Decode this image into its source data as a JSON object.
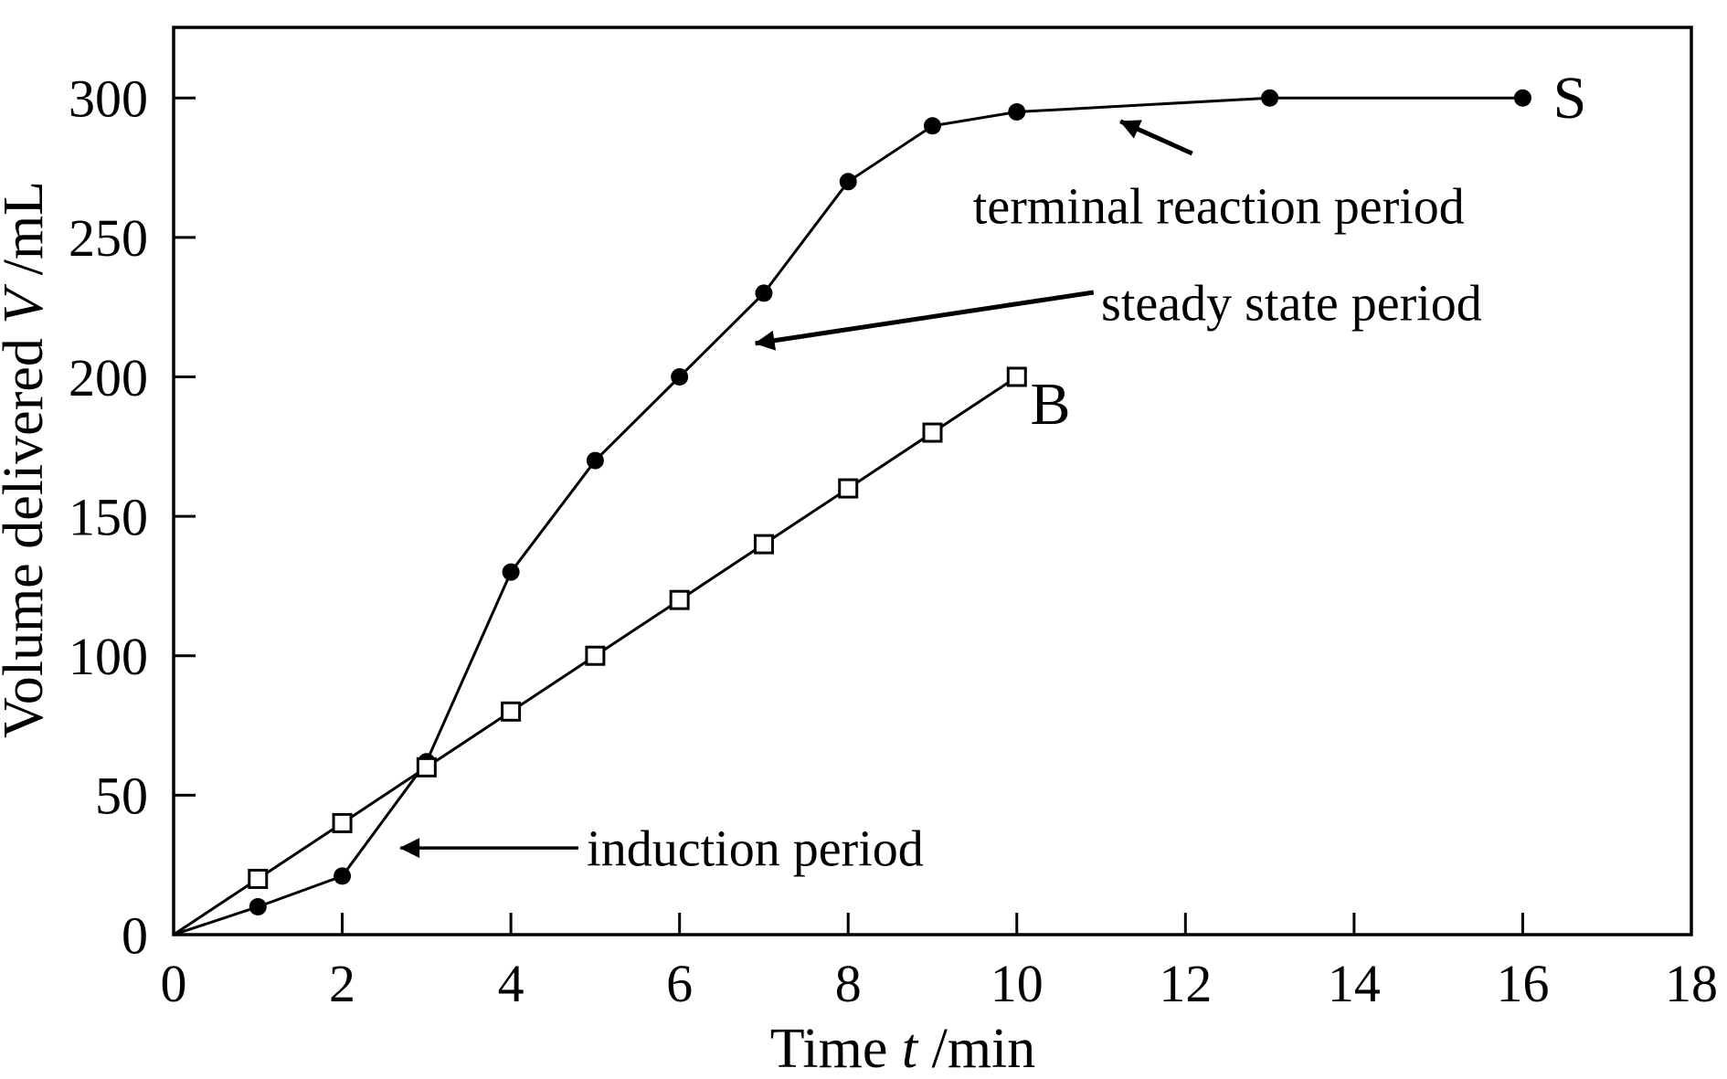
{
  "figure": {
    "background": "#ffffff",
    "ink": "#000000"
  },
  "chart_data": {
    "type": "line",
    "title": "",
    "xlabel_parts": [
      {
        "text": "Time    ",
        "italic": false
      },
      {
        "text": "t",
        "italic": true
      },
      {
        "text": " /min",
        "italic": false
      }
    ],
    "ylabel_parts": [
      {
        "text": "Volume delivered  ",
        "italic": false
      },
      {
        "text": "V",
        "italic": true
      },
      {
        "text": " /mL",
        "italic": false
      }
    ],
    "xlim": [
      0,
      18
    ],
    "ylim": [
      0,
      325.3
    ],
    "xticks": [
      0,
      2,
      4,
      6,
      8,
      10,
      12,
      14,
      16,
      18
    ],
    "yticks": [
      0,
      50,
      100,
      150,
      200,
      250,
      300
    ],
    "grid": false,
    "legend_position": "none",
    "series": [
      {
        "name": "S",
        "marker": "filled-circle",
        "x": [
          0,
          1,
          2,
          3,
          4,
          5,
          6,
          7,
          8,
          9,
          10,
          13,
          16
        ],
        "y": [
          0,
          10,
          21,
          62,
          130,
          170,
          200,
          230,
          270,
          290,
          295,
          300,
          300
        ],
        "label": {
          "text": "S",
          "x": 16.36,
          "y": 300.4
        }
      },
      {
        "name": "B",
        "marker": "open-square",
        "x": [
          0,
          1,
          2,
          3,
          4,
          5,
          6,
          7,
          8,
          9,
          10
        ],
        "y": [
          0,
          20,
          40,
          60,
          80,
          100,
          120,
          140,
          160,
          180,
          200
        ],
        "label": {
          "text": "B",
          "x": 10.16,
          "y": 190.7
        }
      }
    ],
    "annotations": [
      {
        "id": "terminal-reaction-period",
        "text": "terminal reaction period",
        "text_x": 9.48,
        "text_y": 261.4,
        "anchor": "start",
        "bold_arrow": true,
        "arrow": {
          "from_x": 12.08,
          "from_y": 280.1,
          "to_x": 11.23,
          "to_y": 291.6
        }
      },
      {
        "id": "steady-state-period",
        "text": "steady state period",
        "text_x": 11.0,
        "text_y": 226.7,
        "anchor": "start",
        "bold_arrow": true,
        "arrow": {
          "from_x": 10.91,
          "from_y": 230.3,
          "to_x": 6.9,
          "to_y": 212.0
        }
      },
      {
        "id": "induction-period",
        "text": "induction period",
        "text_x": 4.9,
        "text_y": 31.1,
        "anchor": "start",
        "bold_arrow": false,
        "arrow": {
          "from_x": 4.8,
          "from_y": 31.1,
          "to_x": 2.69,
          "to_y": 31.1
        }
      }
    ]
  }
}
